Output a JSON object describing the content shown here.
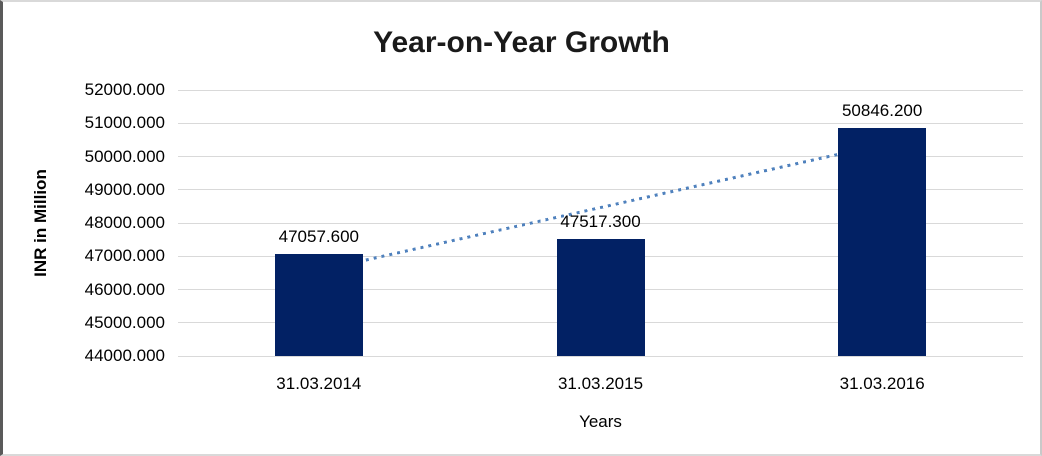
{
  "chart_data": {
    "type": "bar",
    "title": "Year-on-Year Growth",
    "xlabel": "Years",
    "ylabel": "INR in Million",
    "categories": [
      "31.03.2014",
      "31.03.2015",
      "31.03.2016"
    ],
    "values": [
      47057.6,
      47517.3,
      50846.2
    ],
    "data_labels": [
      "47057.600",
      "47517.300",
      "50846.200"
    ],
    "y_tick_values": [
      44000,
      45000,
      46000,
      47000,
      48000,
      49000,
      50000,
      51000,
      52000
    ],
    "y_tick_labels": [
      "44000.000",
      "45000.000",
      "46000.000",
      "47000.000",
      "48000.000",
      "49000.000",
      "50000.000",
      "51000.000",
      "52000.000"
    ],
    "ylim": [
      44000,
      52000
    ],
    "grid": true,
    "legend": "none",
    "trendline": {
      "kind": "linear-dotted",
      "color": "#4f81bd"
    },
    "colors": {
      "bar": "#022164",
      "grid": "#d9d9d9",
      "title": "#1a1a1a",
      "text": "#000000",
      "background": "#ffffff"
    }
  }
}
